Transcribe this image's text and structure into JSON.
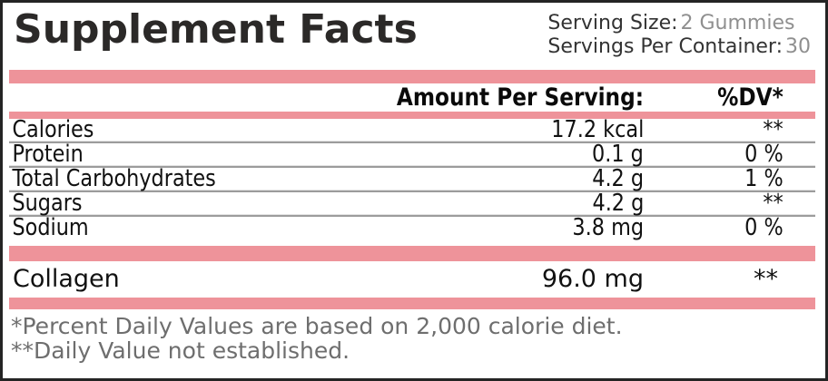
{
  "panel": {
    "title": "Supplement Facts",
    "serving": {
      "size_label": "Serving Size:",
      "size_value": "2 Gummies",
      "container_label": "Servings Per Container:",
      "container_value": "30"
    },
    "columns": {
      "amount_header": "Amount Per Serving:",
      "dv_header": "%DV*"
    },
    "nutrients": [
      {
        "name": "Calories",
        "amount": "17.2 kcal",
        "dv": "**"
      },
      {
        "name": "Protein",
        "amount": "0.1 g",
        "dv": "0 %"
      },
      {
        "name": "Total Carbohydrates",
        "amount": "4.2 g",
        "dv": "1 %"
      },
      {
        "name": "Sugars",
        "amount": "4.2 g",
        "dv": "**"
      },
      {
        "name": "Sodium",
        "amount": "3.8 mg",
        "dv": "0 %"
      }
    ],
    "extra_ingredients": [
      {
        "name": "Collagen",
        "amount": "96.0 mg",
        "dv": "**"
      }
    ],
    "footnotes": [
      "*Percent Daily Values are based on 2,000 calorie diet.",
      "**Daily Value not established."
    ],
    "colors": {
      "accent_pink": "#ee939a"
    }
  }
}
